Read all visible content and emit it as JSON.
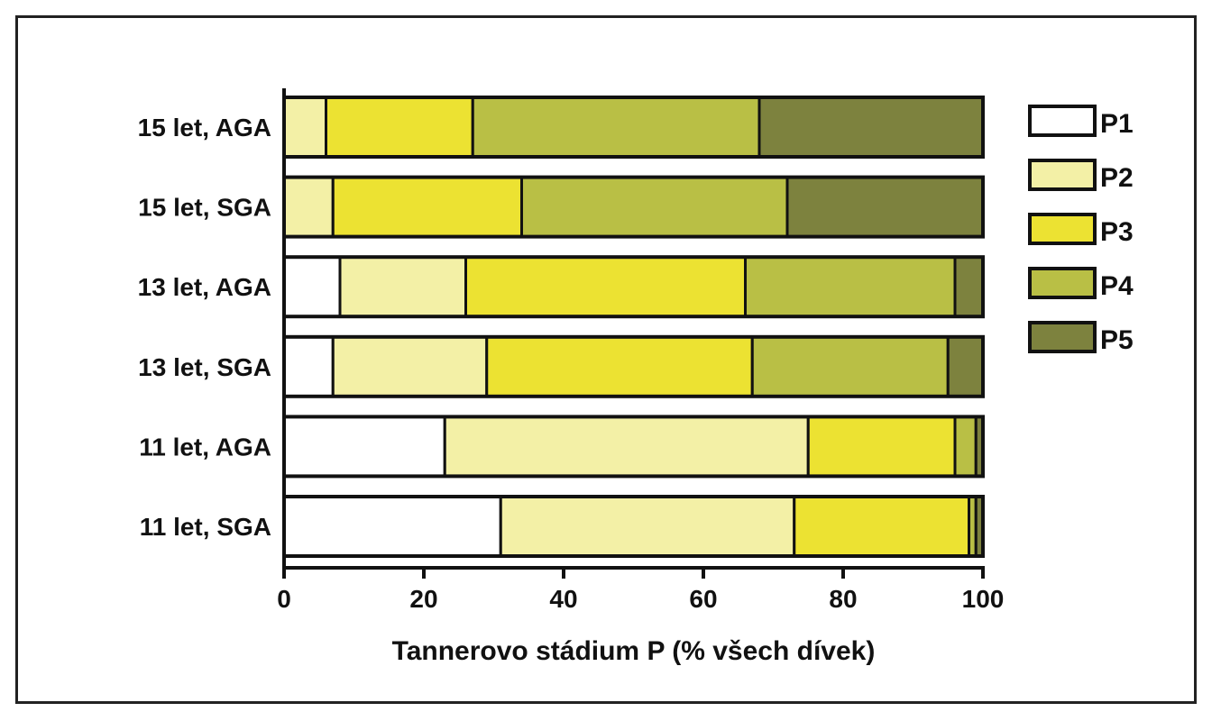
{
  "chart_data": {
    "type": "bar",
    "orientation": "horizontal",
    "stacked": true,
    "categories": [
      "15 let, AGA",
      "15 let, SGA",
      "13 let, AGA",
      "13 let, SGA",
      "11 let, AGA",
      "11 let, SGA"
    ],
    "series": [
      {
        "name": "P1",
        "color": "#ffffff",
        "values": [
          0,
          0,
          8,
          7,
          23,
          31
        ]
      },
      {
        "name": "P2",
        "color": "#f3f0a6",
        "values": [
          6,
          7,
          18,
          22,
          52,
          42
        ]
      },
      {
        "name": "P3",
        "color": "#ece232",
        "values": [
          21,
          27,
          40,
          38,
          21,
          25
        ]
      },
      {
        "name": "P4",
        "color": "#b9bf45",
        "values": [
          41,
          38,
          30,
          28,
          3,
          1
        ]
      },
      {
        "name": "P5",
        "color": "#7d823e",
        "values": [
          32,
          28,
          4,
          5,
          1,
          1
        ]
      }
    ],
    "xlabel": "Tannerovo stádium P (% všech dívek)",
    "xlim": [
      0,
      100
    ],
    "xticks": [
      "0",
      "20",
      "40",
      "60",
      "80",
      "100"
    ],
    "grid": false,
    "legend": "right"
  }
}
